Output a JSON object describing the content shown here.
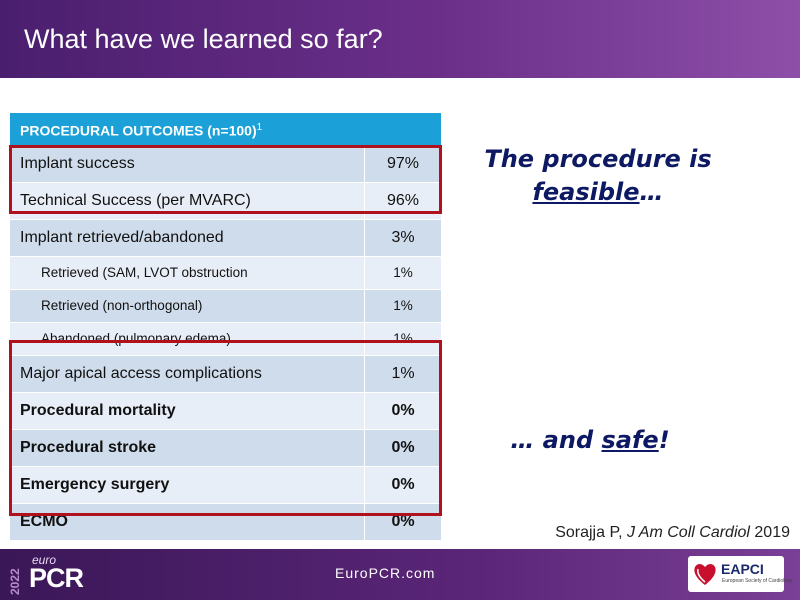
{
  "header": {
    "title": "What have we learned so far?"
  },
  "table": {
    "header": "PROCEDURAL OUTCOMES (n=100)",
    "header_sup": "1",
    "rows": [
      {
        "label": "Implant success",
        "value": "97%"
      },
      {
        "label": "Technical Success (per MVARC)",
        "value": "96%"
      },
      {
        "label": "Implant retrieved/abandoned",
        "value": "3%"
      },
      {
        "label": "Retrieved (SAM, LVOT obstruction",
        "value": "1%"
      },
      {
        "label": "Retrieved (non-orthogonal)",
        "value": "1%"
      },
      {
        "label": "Abandoned (pulmonary edema)",
        "value": "1%"
      },
      {
        "label": "Major apical access complications",
        "value": "1%"
      },
      {
        "label": "Procedural mortality",
        "value": "0%"
      },
      {
        "label": "Procedural stroke",
        "value": "0%"
      },
      {
        "label": "Emergency surgery",
        "value": "0%"
      },
      {
        "label": "ECMO",
        "value": "0%"
      }
    ]
  },
  "callouts": {
    "top_line1": "The procedure is",
    "top_emph": "feasible",
    "top_end": "…",
    "bottom_start": "… and ",
    "bottom_emph": "safe",
    "bottom_end": "!"
  },
  "citation": {
    "author": "Sorajja P, ",
    "journal": "J Am Coll Cardiol",
    "year": " 2019"
  },
  "footer": {
    "year": "2022",
    "logo_euro": "euro",
    "logo_pcr": "PCR",
    "url": "EuroPCR.com",
    "badge_name": "EAPCI",
    "badge_sub": "European Society of Cardiology"
  },
  "colors": {
    "accent_red": "#b0121d",
    "table_header": "#1ca0d8",
    "header_purple": "#6b2f8a",
    "callout_blue": "#0d1a63"
  }
}
